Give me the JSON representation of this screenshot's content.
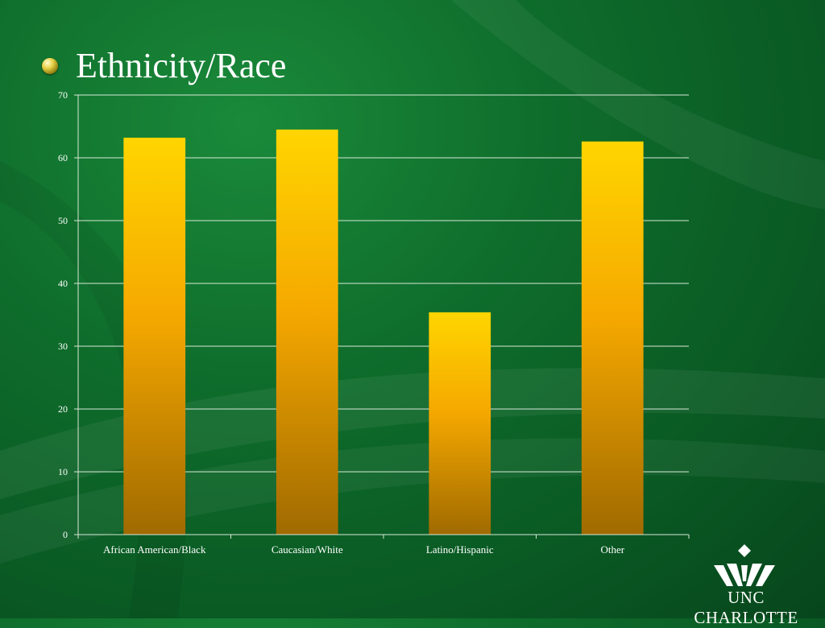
{
  "slide": {
    "title": "Ethnicity/Race",
    "logo_text": "UNC CHARLOTTE"
  },
  "colors": {
    "bar_top": "#FFD500",
    "bar_mid": "#F5A800",
    "bar_bottom": "#A06A00",
    "gridline": "#d8e8d8",
    "text": "#ffffff"
  },
  "chart_data": {
    "type": "bar",
    "categories": [
      "African American/Black",
      "Caucasian/White",
      "Latino/Hispanic",
      "Other"
    ],
    "values": [
      63.2,
      64.5,
      35.4,
      62.6
    ],
    "ylim": [
      0,
      70
    ],
    "yticks": [
      0,
      10,
      20,
      30,
      40,
      50,
      60,
      70
    ],
    "grid": true,
    "legend": "none",
    "title": "",
    "xlabel": "",
    "ylabel": ""
  }
}
